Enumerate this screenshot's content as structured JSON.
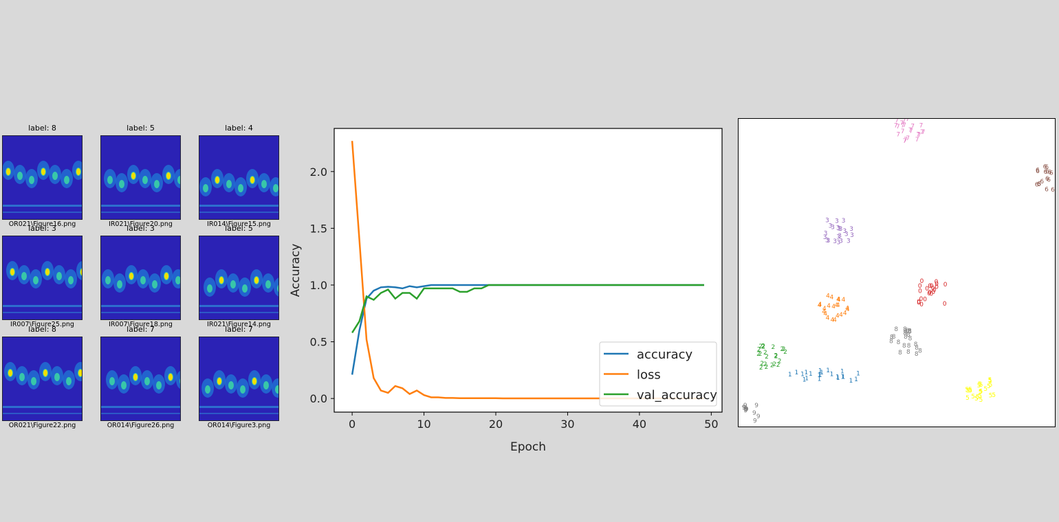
{
  "image_grid": [
    {
      "label": "label: 8",
      "file": "OR021\\Figure16.png"
    },
    {
      "label": "label: 5",
      "file": "IR021\\Figure20.png"
    },
    {
      "label": "label: 4",
      "file": "IR014\\Figure15.png"
    },
    {
      "label": "label: 3",
      "file": "IR007\\Figure25.png"
    },
    {
      "label": "label: 3",
      "file": "IR007\\Figure18.png"
    },
    {
      "label": "label: 5",
      "file": "IR021\\Figure14.png"
    },
    {
      "label": "label: 8",
      "file": "OR021\\Figure22.png"
    },
    {
      "label": "label: 7",
      "file": "OR014\\Figure26.png"
    },
    {
      "label": "label: 7",
      "file": "OR014\\Figure3.png"
    }
  ],
  "colors": {
    "accuracy": "#1f77b4",
    "loss": "#ff7f0e",
    "val_accuracy": "#2ca02c",
    "cwt_bg": "#2b22b5"
  },
  "chart_data": [
    {
      "type": "line",
      "xlabel": "Epoch",
      "ylabel": "Accuracy",
      "xlim": [
        -2.5,
        51.5
      ],
      "ylim": [
        -0.12,
        2.38
      ],
      "xticks": [
        0,
        10,
        20,
        30,
        40,
        50
      ],
      "yticks": [
        0.0,
        0.5,
        1.0,
        1.5,
        2.0
      ],
      "ytick_labels": [
        "0.0",
        "0.5",
        "1.0",
        "1.5",
        "2.0"
      ],
      "legend_position": "lower right",
      "x": [
        0,
        1,
        2,
        3,
        4,
        5,
        6,
        7,
        8,
        9,
        10,
        11,
        12,
        13,
        14,
        15,
        16,
        17,
        18,
        19,
        20,
        21,
        22,
        23,
        24,
        25,
        26,
        27,
        28,
        29,
        30,
        31,
        32,
        33,
        34,
        35,
        36,
        37,
        38,
        39,
        40,
        41,
        42,
        43,
        44,
        45,
        46,
        47,
        48,
        49
      ],
      "series": [
        {
          "name": "accuracy",
          "values": [
            0.21,
            0.6,
            0.88,
            0.95,
            0.98,
            0.985,
            0.98,
            0.97,
            0.99,
            0.98,
            0.99,
            1.0,
            1.0,
            1.0,
            1.0,
            1.0,
            1.0,
            1.0,
            1.0,
            1.0,
            1.0,
            1.0,
            1.0,
            1.0,
            1.0,
            1.0,
            1.0,
            1.0,
            1.0,
            1.0,
            1.0,
            1.0,
            1.0,
            1.0,
            1.0,
            1.0,
            1.0,
            1.0,
            1.0,
            1.0,
            1.0,
            1.0,
            1.0,
            1.0,
            1.0,
            1.0,
            1.0,
            1.0,
            1.0,
            1.0
          ]
        },
        {
          "name": "loss",
          "values": [
            2.27,
            1.4,
            0.52,
            0.18,
            0.07,
            0.05,
            0.11,
            0.09,
            0.04,
            0.07,
            0.03,
            0.01,
            0.01,
            0.005,
            0.005,
            0.003,
            0.003,
            0.002,
            0.002,
            0.002,
            0.002,
            0.001,
            0.001,
            0.001,
            0.001,
            0.001,
            0.001,
            0.001,
            0.001,
            0.001,
            0.001,
            0.001,
            0.001,
            0.001,
            0.001,
            0.001,
            0.001,
            0.001,
            0.001,
            0.001,
            0.001,
            0.001,
            0.001,
            0.001,
            0.001,
            0.001,
            0.001,
            0.001,
            0.001,
            0.001
          ]
        },
        {
          "name": "val_accuracy",
          "values": [
            0.58,
            0.68,
            0.9,
            0.87,
            0.93,
            0.96,
            0.88,
            0.93,
            0.93,
            0.88,
            0.97,
            0.97,
            0.97,
            0.97,
            0.97,
            0.94,
            0.94,
            0.97,
            0.97,
            1.0,
            1.0,
            1.0,
            1.0,
            1.0,
            1.0,
            1.0,
            1.0,
            1.0,
            1.0,
            1.0,
            1.0,
            1.0,
            1.0,
            1.0,
            1.0,
            1.0,
            1.0,
            1.0,
            1.0,
            1.0,
            1.0,
            1.0,
            1.0,
            1.0,
            1.0,
            1.0,
            1.0,
            1.0,
            1.0,
            1.0
          ]
        }
      ]
    },
    {
      "type": "scatter",
      "markers": "digit labels",
      "clusters": [
        {
          "label": "0",
          "color": "#d62728",
          "center": [
            0.61,
            0.57
          ]
        },
        {
          "label": "1",
          "color": "#1f77b4",
          "center": [
            0.27,
            0.84
          ]
        },
        {
          "label": "2",
          "color": "#2ca02c",
          "center": [
            0.11,
            0.78
          ]
        },
        {
          "label": "3",
          "color": "#9467bd",
          "center": [
            0.32,
            0.37
          ]
        },
        {
          "label": "4",
          "color": "#ff7f0e",
          "center": [
            0.3,
            0.62
          ]
        },
        {
          "label": "6",
          "color": "#8c564b",
          "center": [
            0.985,
            0.2
          ]
        },
        {
          "label": "7",
          "color": "#e377c2",
          "center": [
            0.54,
            0.04
          ]
        },
        {
          "label": "8",
          "color": "#7f7f7f",
          "center": [
            0.53,
            0.73
          ]
        },
        {
          "label": "9",
          "color": "#7f7f7f",
          "center": [
            0.05,
            0.96
          ]
        },
        {
          "label": "5",
          "color": "#ffff00",
          "center": [
            0.77,
            0.89
          ]
        }
      ]
    }
  ]
}
